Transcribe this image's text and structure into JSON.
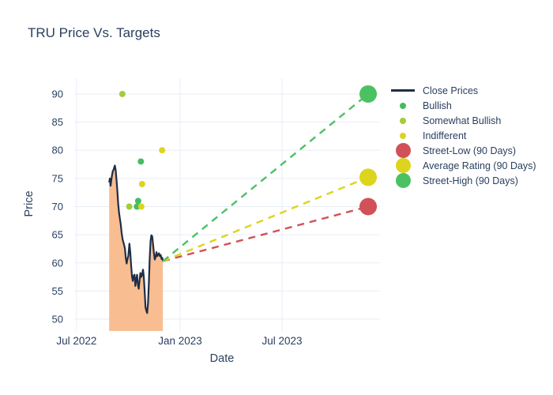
{
  "title": "TRU Price Vs. Targets",
  "colors": {
    "text": "#2a3f5f",
    "grid": "#e8eef5",
    "close_line": "#1f2e45",
    "close_fill": "#f9bd92",
    "bullish": "#45bd5f",
    "somewhat_bullish": "#a4cc38",
    "indifferent": "#ddd41e",
    "street_low": "#d25058",
    "average": "#ddd41e",
    "street_high": "#4cc163"
  },
  "legend": {
    "items": [
      {
        "label": "Close Prices",
        "marker": "line",
        "color_key": "close_line"
      },
      {
        "label": "Bullish",
        "marker": "dot",
        "color_key": "bullish"
      },
      {
        "label": "Somewhat Bullish",
        "marker": "dot",
        "color_key": "somewhat_bullish"
      },
      {
        "label": "Indifferent",
        "marker": "dot",
        "color_key": "indifferent"
      },
      {
        "label": "Street-Low (90 Days)",
        "marker": "big-dot",
        "color_key": "street_low"
      },
      {
        "label": "Average Rating (90 Days)",
        "marker": "big-dot",
        "color_key": "average"
      },
      {
        "label": "Street-High (90 Days)",
        "marker": "big-dot",
        "color_key": "street_high"
      }
    ]
  },
  "chart_data": {
    "type": "line",
    "title": "TRU Price Vs. Targets",
    "xlabel": "Date",
    "ylabel": "Price",
    "x_axis": {
      "tick_labels": [
        "Jul 2022",
        "Jan 2023",
        "Jul 2023"
      ],
      "tick_days": [
        0,
        184,
        365
      ],
      "range_days": [
        -4,
        539
      ],
      "day_zero": "Jul 1 2022",
      "grid": true
    },
    "y_axis": {
      "ticks": [
        50,
        55,
        60,
        65,
        70,
        75,
        80,
        85,
        90
      ],
      "range": [
        47.9,
        92.8
      ],
      "grid": true
    },
    "close_prices": {
      "name": "Close Prices",
      "fill_to_bottom": true,
      "days": [
        58,
        59.3,
        60.5,
        61.5,
        63,
        64.5,
        66,
        68.1,
        69.5,
        71,
        72.5,
        74,
        75.5,
        77,
        78.5,
        80.2,
        82,
        84,
        86,
        87.5,
        89,
        90.5,
        92,
        94,
        95.5,
        97,
        98.5,
        100,
        101.5,
        103,
        104.5,
        106,
        107.5,
        109,
        110.5,
        112,
        113.5,
        115,
        116.5,
        118,
        119.5,
        121,
        122.5,
        124,
        125.5,
        127,
        128.5,
        130,
        131.5,
        133,
        134.5,
        136,
        137.5,
        139,
        140.5,
        142,
        143.5,
        145,
        146.5,
        148,
        149.5,
        151,
        152.3,
        153.4
      ],
      "prices": [
        74.3,
        75.0,
        73.7,
        74.5,
        75.6,
        76.3,
        76.6,
        77.3,
        76.5,
        74.7,
        72.9,
        70.5,
        68.9,
        67.9,
        66.9,
        65.3,
        64.1,
        63.4,
        62.6,
        60.9,
        59.9,
        60.7,
        61.2,
        63.4,
        61.9,
        59.5,
        57.6,
        56.8,
        57.7,
        57.9,
        55.9,
        57.0,
        57.9,
        56.2,
        55.4,
        56.9,
        58.2,
        57.5,
        57.9,
        58.8,
        57.6,
        55.0,
        52.1,
        51.5,
        51.1,
        52.9,
        56.3,
        60.8,
        63.9,
        64.9,
        64.7,
        63.2,
        61.8,
        60.6,
        61.0,
        61.9,
        61.2,
        61.5,
        61.7,
        61.2,
        61.4,
        60.7,
        60.9,
        60.3
      ]
    },
    "ratings": [
      {
        "name": "Bullish",
        "color_key": "bullish",
        "points": [
          {
            "day": 114.3,
            "price": 78
          },
          {
            "day": 109.5,
            "price": 71
          },
          {
            "day": 107.3,
            "price": 70
          }
        ]
      },
      {
        "name": "Somewhat Bullish",
        "color_key": "somewhat_bullish",
        "points": [
          {
            "day": 81.4,
            "price": 90
          },
          {
            "day": 93.7,
            "price": 70
          }
        ]
      },
      {
        "name": "Indifferent",
        "color_key": "indifferent",
        "points": [
          {
            "day": 152,
            "price": 80
          },
          {
            "day": 116.5,
            "price": 74
          },
          {
            "day": 115.1,
            "price": 70
          }
        ]
      }
    ],
    "targets": {
      "anchor": {
        "day": 153.4,
        "price": 60.3
      },
      "end_day": 518,
      "series": [
        {
          "name": "Street-Low (90 Days)",
          "price": 70,
          "color_key": "street_low"
        },
        {
          "name": "Average Rating (90 Days)",
          "price": 75.2,
          "color_key": "average"
        },
        {
          "name": "Street-High (90 Days)",
          "price": 90,
          "color_key": "street_high"
        }
      ]
    }
  }
}
